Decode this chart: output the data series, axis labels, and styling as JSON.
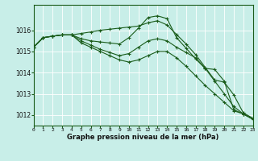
{
  "title": "Graphe pression niveau de la mer (hPa)",
  "bg_color": "#c8eee8",
  "grid_color": "#ffffff",
  "line_color": "#1a5c1a",
  "xlim": [
    0,
    23
  ],
  "ylim": [
    1011.5,
    1017.2
  ],
  "yticks": [
    1012,
    1013,
    1014,
    1015,
    1016
  ],
  "xtick_labels": [
    "0",
    "1",
    "2",
    "3",
    "4",
    "5",
    "6",
    "7",
    "8",
    "9",
    "10",
    "11",
    "12",
    "13",
    "14",
    "15",
    "16",
    "17",
    "18",
    "19",
    "20",
    "21",
    "22",
    "23"
  ],
  "series": [
    [
      1015.2,
      1015.65,
      1015.72,
      1015.78,
      1015.78,
      1015.85,
      1015.92,
      1016.0,
      1016.05,
      1016.1,
      1016.15,
      1016.2,
      1016.35,
      1016.45,
      1016.25,
      1015.8,
      1015.35,
      1014.85,
      1014.25,
      1013.65,
      1013.55,
      1012.95,
      1012.1,
      1011.85
    ],
    [
      1015.2,
      1015.65,
      1015.72,
      1015.78,
      1015.78,
      1015.6,
      1015.5,
      1015.45,
      1015.4,
      1015.35,
      1015.65,
      1016.1,
      1016.6,
      1016.68,
      1016.55,
      1015.65,
      1015.15,
      1014.65,
      1014.2,
      1014.15,
      1013.6,
      1012.25,
      1012.05,
      1011.8
    ],
    [
      1015.2,
      1015.65,
      1015.72,
      1015.78,
      1015.78,
      1015.5,
      1015.3,
      1015.1,
      1014.95,
      1014.8,
      1014.9,
      1015.2,
      1015.5,
      1015.6,
      1015.5,
      1015.2,
      1014.95,
      1014.7,
      1014.2,
      1013.6,
      1013.0,
      1012.4,
      1012.05,
      1011.8
    ],
    [
      1015.2,
      1015.65,
      1015.72,
      1015.78,
      1015.78,
      1015.4,
      1015.2,
      1015.0,
      1014.8,
      1014.6,
      1014.5,
      1014.6,
      1014.8,
      1015.0,
      1015.0,
      1014.7,
      1014.3,
      1013.85,
      1013.4,
      1013.0,
      1012.6,
      1012.2,
      1012.05,
      1011.8
    ]
  ]
}
